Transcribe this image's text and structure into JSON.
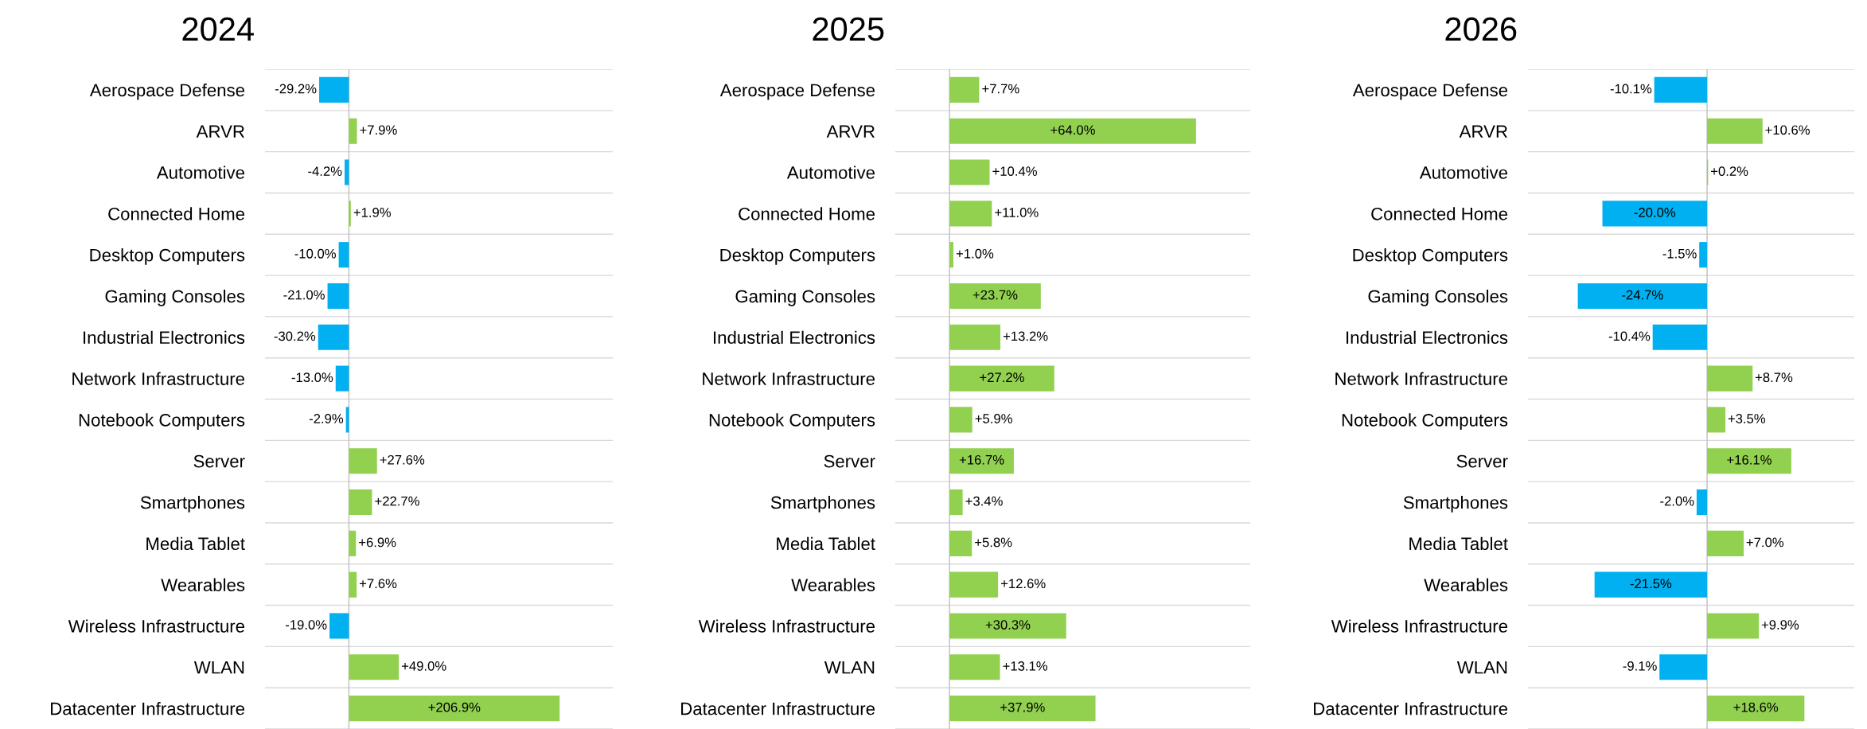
{
  "chart_data": [
    {
      "type": "bar",
      "orientation": "horizontal",
      "title": "2024",
      "grid": "y",
      "categories": [
        "Aerospace Defense",
        "ARVR",
        "Automotive",
        "Connected Home",
        "Desktop Computers",
        "Gaming Consoles",
        "Industrial Electronics",
        "Network Infrastructure",
        "Notebook Computers",
        "Server",
        "Smartphones",
        "Media Tablet",
        "Wearables",
        "Wireless Infrastructure",
        "WLAN",
        "Datacenter Infrastructure"
      ],
      "values": [
        -29.2,
        7.9,
        -4.2,
        1.9,
        -10.0,
        -21.0,
        -30.2,
        -13.0,
        -2.9,
        27.6,
        22.7,
        6.9,
        7.6,
        -19.0,
        49.0,
        206.9
      ],
      "value_labels": [
        "-29.2%",
        "+7.9%",
        "-4.2%",
        "+1.9%",
        "-10.0%",
        "-21.0%",
        "-30.2%",
        "-13.0%",
        "-2.9%",
        "+27.6%",
        "+22.7%",
        "+6.9%",
        "+7.6%",
        "-19.0%",
        "+49.0%",
        "+206.9%"
      ],
      "colors": [
        "#00b0f0",
        "#92d050",
        "#00b0f0",
        "#92d050",
        "#00b0f0",
        "#00b0f0",
        "#00b0f0",
        "#00b0f0",
        "#00b0f0",
        "#92d050",
        "#92d050",
        "#92d050",
        "#92d050",
        "#00b0f0",
        "#92d050",
        "#92d050"
      ]
    },
    {
      "type": "bar",
      "orientation": "horizontal",
      "title": "2025",
      "grid": "y",
      "categories": [
        "Aerospace Defense",
        "ARVR",
        "Automotive",
        "Connected Home",
        "Desktop Computers",
        "Gaming Consoles",
        "Industrial Electronics",
        "Network Infrastructure",
        "Notebook Computers",
        "Server",
        "Smartphones",
        "Media Tablet",
        "Wearables",
        "Wireless Infrastructure",
        "WLAN",
        "Datacenter Infrastructure"
      ],
      "values": [
        7.7,
        64.0,
        10.4,
        11.0,
        1.0,
        23.7,
        13.2,
        27.2,
        5.9,
        16.7,
        3.4,
        5.8,
        12.6,
        30.3,
        13.1,
        37.9
      ],
      "value_labels": [
        "+7.7%",
        "+64.0%",
        "+10.4%",
        "+11.0%",
        "+1.0%",
        "+23.7%",
        "+13.2%",
        "+27.2%",
        "+5.9%",
        "+16.7%",
        "+3.4%",
        "+5.8%",
        "+12.6%",
        "+30.3%",
        "+13.1%",
        "+37.9%"
      ],
      "colors": [
        "#92d050",
        "#92d050",
        "#92d050",
        "#92d050",
        "#92d050",
        "#92d050",
        "#92d050",
        "#92d050",
        "#92d050",
        "#92d050",
        "#92d050",
        "#92d050",
        "#92d050",
        "#92d050",
        "#92d050",
        "#92d050"
      ]
    },
    {
      "type": "bar",
      "orientation": "horizontal",
      "title": "2026",
      "grid": "y",
      "categories": [
        "Aerospace Defense",
        "ARVR",
        "Automotive",
        "Connected Home",
        "Desktop Computers",
        "Gaming Consoles",
        "Industrial Electronics",
        "Network Infrastructure",
        "Notebook Computers",
        "Server",
        "Smartphones",
        "Media Tablet",
        "Wearables",
        "Wireless Infrastructure",
        "WLAN",
        "Datacenter Infrastructure"
      ],
      "values": [
        -10.1,
        10.6,
        0.2,
        -20.0,
        -1.5,
        -24.7,
        -10.4,
        8.7,
        3.5,
        16.1,
        -2.0,
        7.0,
        -21.5,
        9.9,
        -9.1,
        18.6
      ],
      "value_labels": [
        "-10.1%",
        "+10.6%",
        "+0.2%",
        "-20.0%",
        "-1.5%",
        "-24.7%",
        "-10.4%",
        "+8.7%",
        "+3.5%",
        "+16.1%",
        "-2.0%",
        "+7.0%",
        "-21.5%",
        "+9.9%",
        "-9.1%",
        "+18.6%"
      ],
      "colors": [
        "#00b0f0",
        "#92d050",
        "#92d050",
        "#00b0f0",
        "#00b0f0",
        "#00b0f0",
        "#00b0f0",
        "#92d050",
        "#92d050",
        "#92d050",
        "#00b0f0",
        "#92d050",
        "#00b0f0",
        "#92d050",
        "#00b0f0",
        "#92d050"
      ]
    }
  ]
}
